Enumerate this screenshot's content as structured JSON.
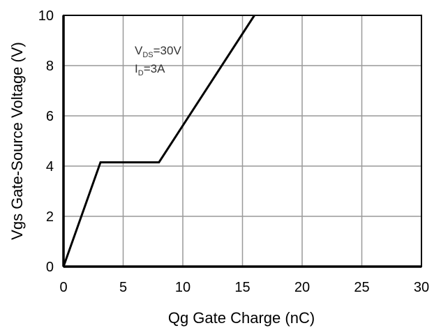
{
  "chart_data": {
    "type": "line",
    "title": "",
    "xlabel": "Qg Gate Charge (nC)",
    "ylabel": "Vgs Gate-Source Voltage (V)",
    "xlim": [
      0,
      30
    ],
    "ylim": [
      0,
      10
    ],
    "x_ticks": [
      "0",
      "5",
      "10",
      "15",
      "20",
      "25",
      "30"
    ],
    "y_ticks": [
      "0",
      "2",
      "4",
      "6",
      "8",
      "10"
    ],
    "grid": true,
    "series": [
      {
        "x": [
          0,
          3.1,
          8,
          16
        ],
        "y": [
          0,
          4.15,
          4.15,
          10
        ]
      }
    ],
    "annotations": [
      {
        "text": "V",
        "sub": "DS",
        "rest": "=30V"
      },
      {
        "text": "I",
        "sub": "D",
        "rest": "=3A"
      }
    ],
    "colors": {
      "line": "#000000",
      "grid": "#999999",
      "axis": "#000000"
    }
  }
}
